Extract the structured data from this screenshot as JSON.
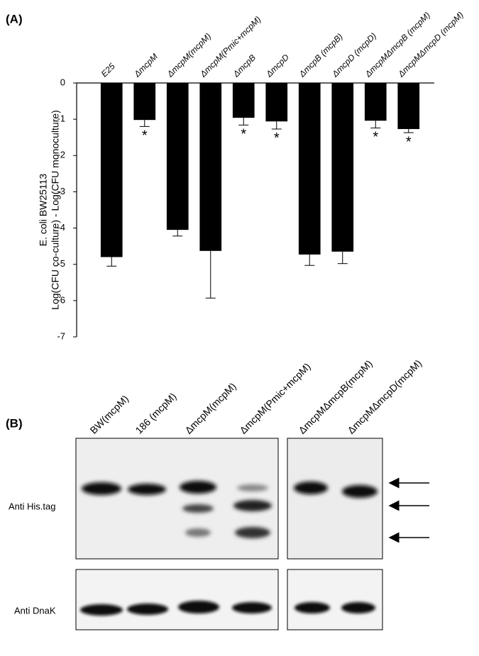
{
  "panel_a_label": "(A)",
  "chart_data": {
    "type": "bar",
    "ylabel": [
      "E. coli BW25113",
      "Log(CFU co-culture) - Log(CFU monoculture)"
    ],
    "categories": [
      "E25",
      "ΔmcpM",
      "ΔmcpM(mcpM)",
      "ΔmcpM(Pmic+mcpM)",
      "ΔmcpB",
      "ΔmcpD",
      "ΔmcpB (mcpB)",
      "ΔmcpD (mcpD)",
      "ΔmcpMΔmcpB (mcpM)",
      "ΔmcpMΔmcpD (mcpM)"
    ],
    "values": [
      -4.8,
      -1.02,
      -4.05,
      -4.63,
      -0.96,
      -1.06,
      -4.73,
      -4.65,
      -1.04,
      -1.27
    ],
    "errors": [
      0.25,
      0.18,
      0.17,
      1.3,
      0.2,
      0.21,
      0.3,
      0.33,
      0.2,
      0.1
    ],
    "significance": [
      null,
      "*",
      null,
      null,
      "*",
      "*",
      null,
      null,
      "*",
      "*"
    ],
    "color": "#000000",
    "ylim": [
      -7,
      0
    ],
    "yticks": [
      0,
      -1,
      -2,
      -3,
      -4,
      -5,
      -6,
      -7
    ]
  },
  "panel_b": {
    "label": "(B)",
    "lanes": [
      "BW(mcpM)",
      "186 (mcpM)",
      "ΔmcpM(mcpM)",
      "ΔmcpM(Pmic+mcpM)",
      "ΔmcpMΔmcpB(mcpM)",
      "ΔmcpMΔmcpD(mcpM)"
    ],
    "rows": [
      "Anti His.tag",
      "Anti DnaK"
    ]
  }
}
